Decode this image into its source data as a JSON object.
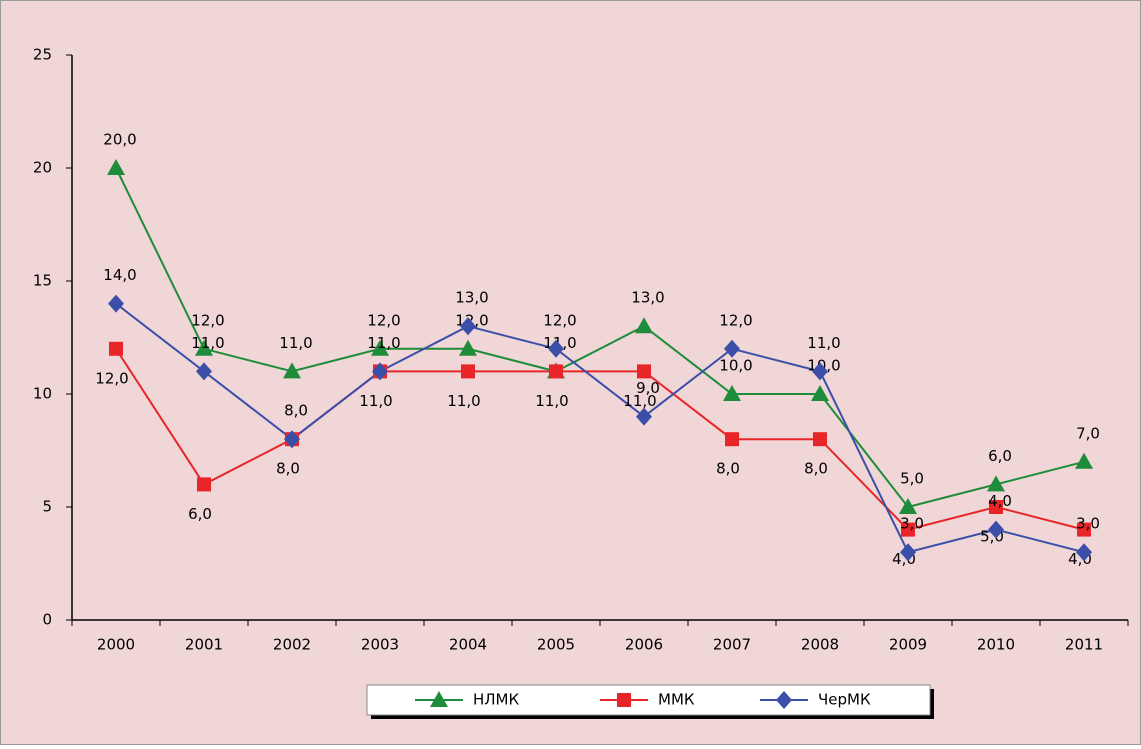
{
  "chart_data": {
    "type": "line",
    "categories": [
      "2000",
      "2001",
      "2002",
      "2003",
      "2004",
      "2005",
      "2006",
      "2007",
      "2008",
      "2009",
      "2010",
      "2011"
    ],
    "series": [
      {
        "name": "НЛМК",
        "color": "#1e8c3a",
        "marker": "triangle",
        "values": [
          20,
          12,
          11,
          12,
          12,
          11,
          13,
          10,
          10,
          5,
          6,
          7
        ],
        "value_labels": [
          "20,0",
          "12,0",
          "11,0",
          "12,0",
          "12,0",
          "11,0",
          "13,0",
          "10,0",
          "10,0",
          "5,0",
          "6,0",
          "7,0"
        ]
      },
      {
        "name": "ММК",
        "color": "#e8262a",
        "marker": "square",
        "values": [
          12,
          6,
          8,
          11,
          11,
          11,
          11,
          8,
          8,
          4,
          5,
          4
        ],
        "value_labels": [
          "12,0",
          "6,0",
          "8,0",
          "11,0",
          "11,0",
          "11,0",
          "11,0",
          "8,0",
          "8,0",
          "4,0",
          "5,0",
          "4,0"
        ]
      },
      {
        "name": "ЧерМК",
        "color": "#3c4fa8",
        "marker": "diamond",
        "values": [
          14,
          11,
          8,
          11,
          13,
          12,
          9,
          12,
          11,
          3,
          4,
          3
        ],
        "value_labels": [
          "14,0",
          "11,0",
          "8,0",
          "11,0",
          "13,0",
          "12,0",
          "9,0",
          "12,0",
          "11,0",
          "3,0",
          "4,0",
          "3,0"
        ]
      }
    ],
    "ylim": [
      0,
      25
    ],
    "yticks": [
      0,
      5,
      10,
      15,
      20,
      25
    ],
    "legend": "bottom"
  }
}
